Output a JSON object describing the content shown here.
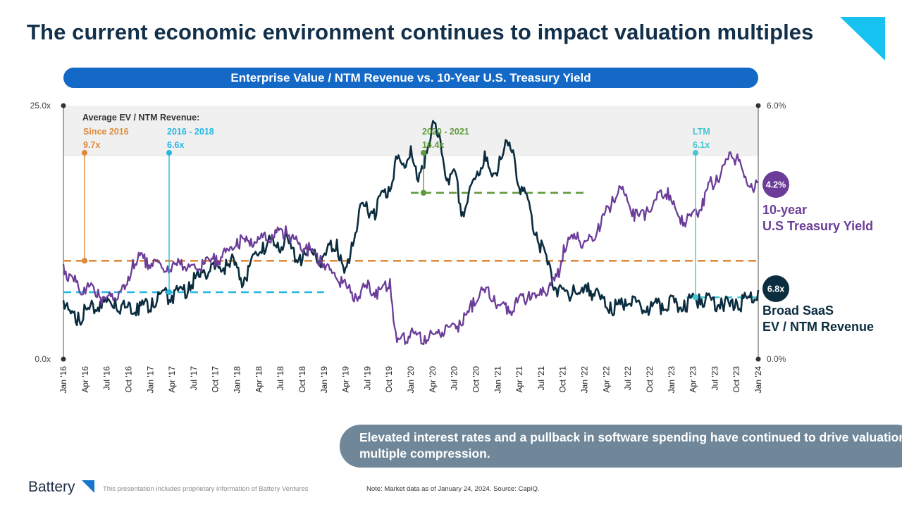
{
  "title": "The current economic environment continues to impact valuation multiples",
  "chart_title": "Enterprise Value / NTM Revenue vs. 10-Year U.S. Treasury Yield",
  "callout": "Elevated interest rates and a pullback in software spending have continued to drive valuation-multiple compression.",
  "footer": {
    "brand": "Battery",
    "disclaimer": "This presentation includes proprietary information of Battery Ventures",
    "note": "Note: Market data as of January 24, 2024. Source: CapIQ."
  },
  "colors": {
    "navy": "#0b2d3f",
    "purple": "#6b3d98",
    "orange": "#e08b3c",
    "cyan": "#27b7e2",
    "green": "#5f9b3c",
    "teal": "#45c6d0",
    "band": "#f0f0f0",
    "corner": "#16c3f0"
  },
  "chart_data": {
    "type": "line",
    "x_ticks": [
      "Jan '16",
      "Apr '16",
      "Jul '16",
      "Oct '16",
      "Jan '17",
      "Apr '17",
      "Jul '17",
      "Oct '17",
      "Jan '18",
      "Apr '18",
      "Jul '18",
      "Oct '18",
      "Jan '19",
      "Apr '19",
      "Jul '19",
      "Oct '19",
      "Jan '20",
      "Apr '20",
      "Jul '20",
      "Oct '20",
      "Jan '21",
      "Apr '21",
      "Jul '21",
      "Oct '21",
      "Jan '22",
      "Apr '22",
      "Jul '22",
      "Oct '22",
      "Jan '23",
      "Apr '23",
      "Jul '23",
      "Oct '23",
      "Jan '24"
    ],
    "x_range": [
      "2016-01",
      "2024-01"
    ],
    "y_left": {
      "range": [
        0,
        25
      ],
      "ticks": [
        "0.0x",
        "25.0x"
      ]
    },
    "y_right": {
      "range": [
        0,
        6
      ],
      "ticks": [
        "0.0%",
        "6.0%"
      ]
    },
    "averages_header": "Average EV / NTM Revenue:",
    "averages": [
      {
        "label": "Since 2016",
        "value": 9.7,
        "value_label": "9.7x",
        "from": 0,
        "to": 32,
        "color_key": "orange"
      },
      {
        "label": "2016 - 2018",
        "value": 6.6,
        "value_label": "6.6x",
        "from": 0,
        "to": 12,
        "color_key": "cyan"
      },
      {
        "label": "2020 - 2021",
        "value": 16.4,
        "value_label": "16.4x",
        "from": 16,
        "to": 24,
        "color_key": "green"
      },
      {
        "label": "LTM",
        "value": 6.1,
        "value_label": "6.1x",
        "from": 28.7,
        "to": 32,
        "color_key": "teal"
      }
    ],
    "series": [
      {
        "name_line1": "Broad SaaS",
        "name_line2": "EV / NTM Revenue",
        "axis": "left",
        "end_label": "6.8x",
        "color_key": "navy",
        "values": [
          5.8,
          4.5,
          4.6,
          5.0,
          5.4,
          5.7,
          6.0,
          6.0,
          5.5,
          5.5,
          5.5,
          5.7,
          6.0,
          6.4,
          6.7,
          6.8,
          7.0,
          7.6,
          8.3,
          8.8,
          9.4,
          9.0,
          9.8,
          10.0,
          8.0,
          9.2,
          10.6,
          11.5,
          11.8,
          11.5,
          12.2,
          11.0,
          10.3,
          10.5,
          10.8,
          10.0,
          11.3,
          11.8,
          8.5,
          11.5,
          14.7,
          15.5,
          14.8,
          16.5,
          17.0,
          20.0,
          19.3,
          21.0,
          17.5,
          20.5,
          23.5,
          21.6,
          17.8,
          18.5,
          14.5,
          17.0,
          18.5,
          20.5,
          18.0,
          20.0,
          21.5,
          20.0,
          17.0,
          15.5,
          12.5,
          11.0,
          8.5,
          7.0,
          6.8,
          7.3,
          6.7,
          7.5,
          6.8,
          6.0,
          5.6,
          5.4,
          5.9,
          6.2,
          5.5,
          5.2,
          5.6,
          5.5,
          6.1,
          5.5,
          5.8,
          6.2,
          6.4,
          6.5,
          6.1,
          6.0,
          5.6,
          5.9,
          6.0,
          6.6,
          6.8
        ]
      },
      {
        "name_line1": "10-year",
        "name_line2": "U.S Treasury Yield",
        "axis": "right",
        "end_label": "4.2%",
        "color_key": "purple",
        "values": [
          2.25,
          2.0,
          1.85,
          1.7,
          1.8,
          1.65,
          1.45,
          1.55,
          1.6,
          1.75,
          2.35,
          2.45,
          2.4,
          2.35,
          2.25,
          2.2,
          2.25,
          2.35,
          2.25,
          2.15,
          2.35,
          2.35,
          2.45,
          2.55,
          2.65,
          2.85,
          2.85,
          2.85,
          2.9,
          3.0,
          2.95,
          3.05,
          3.15,
          2.95,
          2.75,
          2.72,
          2.55,
          2.45,
          2.25,
          2.05,
          1.95,
          1.7,
          1.55,
          1.7,
          1.8,
          1.65,
          1.75,
          1.9,
          0.4,
          0.62,
          0.65,
          0.6,
          0.55,
          0.62,
          0.7,
          0.8,
          0.85,
          0.92,
          1.05,
          1.45,
          1.6,
          1.7,
          1.5,
          1.3,
          1.25,
          1.35,
          1.5,
          1.6,
          1.45,
          1.7,
          1.8,
          1.95,
          2.7,
          2.9,
          3.0,
          2.8,
          2.9,
          3.2,
          3.5,
          3.85,
          4.1,
          3.9,
          3.55,
          3.45,
          3.6,
          3.75,
          4.0,
          4.05,
          3.6,
          3.4,
          3.4,
          3.55,
          3.8,
          4.2,
          4.35,
          4.6,
          4.9,
          4.85,
          4.3,
          4.15,
          4.2
        ]
      }
    ]
  }
}
